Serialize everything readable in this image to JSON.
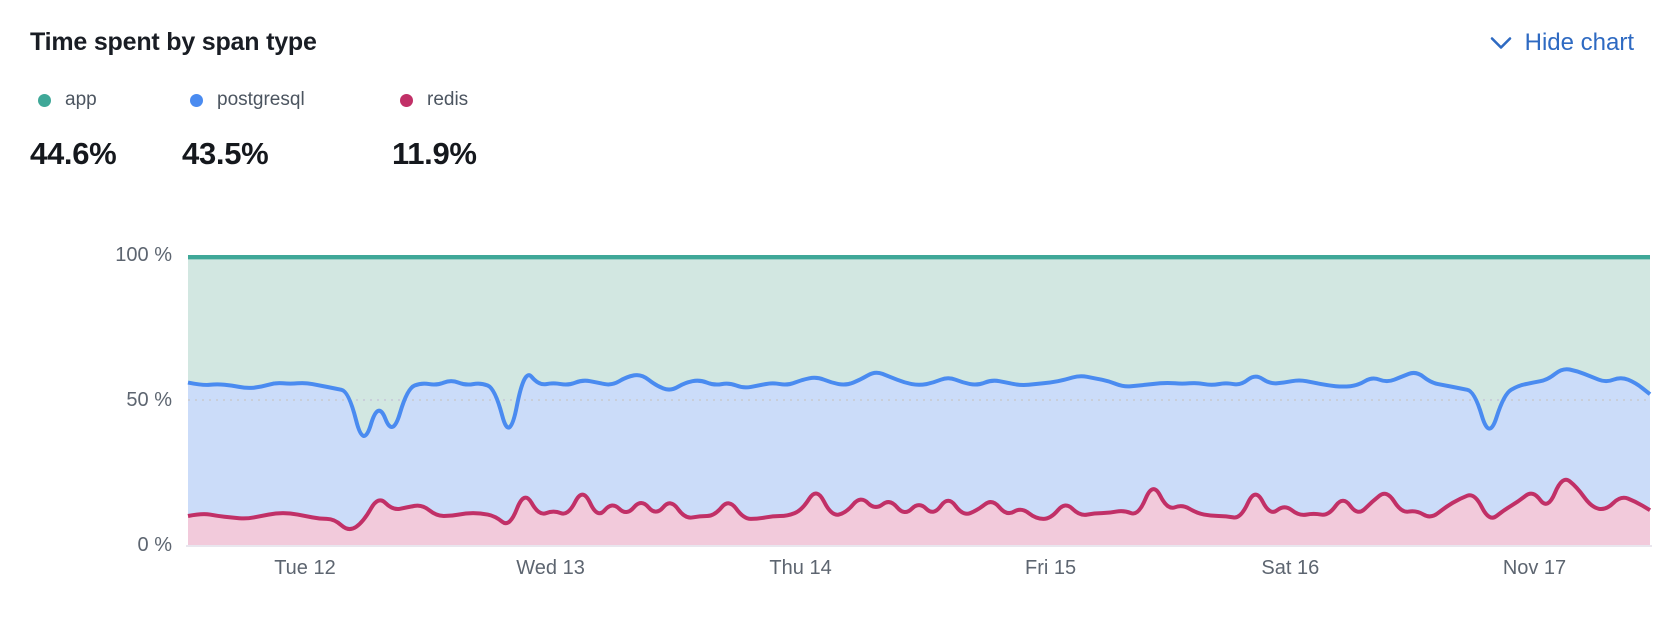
{
  "header": {
    "title": "Time spent by span type",
    "toggle_label": "Hide chart",
    "toggle_color": "#2e6ac2"
  },
  "legend": [
    {
      "label": "app",
      "value": "44.6%",
      "color": "#3fa898"
    },
    {
      "label": "postgresql",
      "value": "43.5%",
      "color": "#4a8bf0"
    },
    {
      "label": "redis",
      "value": "11.9%",
      "color": "#c13067"
    }
  ],
  "chart_data": {
    "type": "area",
    "stacked": "percent",
    "title": "Time spent by span type",
    "ylim": [
      0,
      100
    ],
    "grid": "dotted line at 50% only",
    "legend_position": "above chart, top-left",
    "y_ticks": [
      {
        "label": "100 %",
        "value": 100
      },
      {
        "label": "50 %",
        "value": 50
      },
      {
        "label": "0 %",
        "value": 0
      }
    ],
    "x_ticks": [
      {
        "label": "Tue 12",
        "f": 0.08
      },
      {
        "label": "Wed 13",
        "f": 0.248
      },
      {
        "label": "Thu 14",
        "f": 0.419
      },
      {
        "label": "Fri 15",
        "f": 0.59
      },
      {
        "label": "Sat 16",
        "f": 0.754
      },
      {
        "label": "Nov 17",
        "f": 0.921
      }
    ],
    "series": [
      {
        "name": "app",
        "share_label": "44.6%",
        "color": "#3fa898",
        "fill": "#d2e7e1",
        "note": "top band; upper boundary is the flat 100 % line"
      },
      {
        "name": "postgresql",
        "share_label": "43.5%",
        "color": "#4a8bf0",
        "fill": "#cbdcf9",
        "boundary_cumulative_percent": [
          56,
          55,
          55.5,
          55,
          54,
          54.5,
          56,
          55.5,
          56,
          55,
          54,
          53,
          33,
          50,
          37,
          54,
          56,
          55,
          57,
          55,
          56,
          54,
          35,
          61,
          55,
          56,
          55,
          57,
          56,
          55,
          58,
          59,
          55,
          53,
          56,
          57,
          55,
          56,
          54,
          55,
          56,
          55,
          57,
          58,
          56,
          55,
          57,
          60,
          58,
          56,
          55,
          56,
          58,
          56,
          55,
          57,
          56,
          55,
          55.5,
          56,
          57,
          58.5,
          57.5,
          56.5,
          54.5,
          55,
          55.5,
          56,
          55.5,
          56,
          55,
          56,
          55,
          59,
          55.5,
          56,
          57,
          56,
          55,
          54.5,
          55,
          58,
          56,
          58,
          60,
          56,
          55,
          54,
          53,
          36,
          52,
          55,
          56,
          57,
          61,
          60,
          58,
          56,
          58,
          56,
          52
        ]
      },
      {
        "name": "redis",
        "share_label": "11.9%",
        "color": "#c13067",
        "fill": "#f2cadb",
        "boundary_cumulative_percent": [
          10,
          11,
          10,
          9.5,
          9,
          10,
          11,
          11,
          10,
          9,
          9,
          4.5,
          8,
          17,
          12,
          13,
          14,
          10,
          10,
          11,
          11,
          10,
          6,
          19,
          10,
          12,
          10,
          20,
          9,
          15,
          10,
          16,
          10,
          16,
          9,
          10,
          10,
          16,
          9,
          9,
          10,
          10,
          12,
          20,
          10,
          11,
          17,
          12,
          16,
          10,
          15,
          10,
          17,
          10,
          12,
          16,
          10,
          13,
          9,
          9,
          15,
          10,
          11,
          11,
          12,
          10,
          22,
          12,
          14,
          11,
          10,
          10,
          9,
          20,
          10,
          14,
          10,
          11,
          10,
          17,
          10,
          15,
          19,
          11,
          12,
          9,
          13,
          16,
          18,
          8,
          12,
          15,
          19,
          12,
          24,
          20,
          13,
          12,
          17,
          15,
          12
        ]
      }
    ],
    "style": {
      "top_line_color": "#3fa898",
      "blue_line_color": "#4a8bf0",
      "pink_line_color": "#c13067",
      "dotted_grid_color": "#c9ced9",
      "axis_label_color": "#5d6570"
    }
  }
}
